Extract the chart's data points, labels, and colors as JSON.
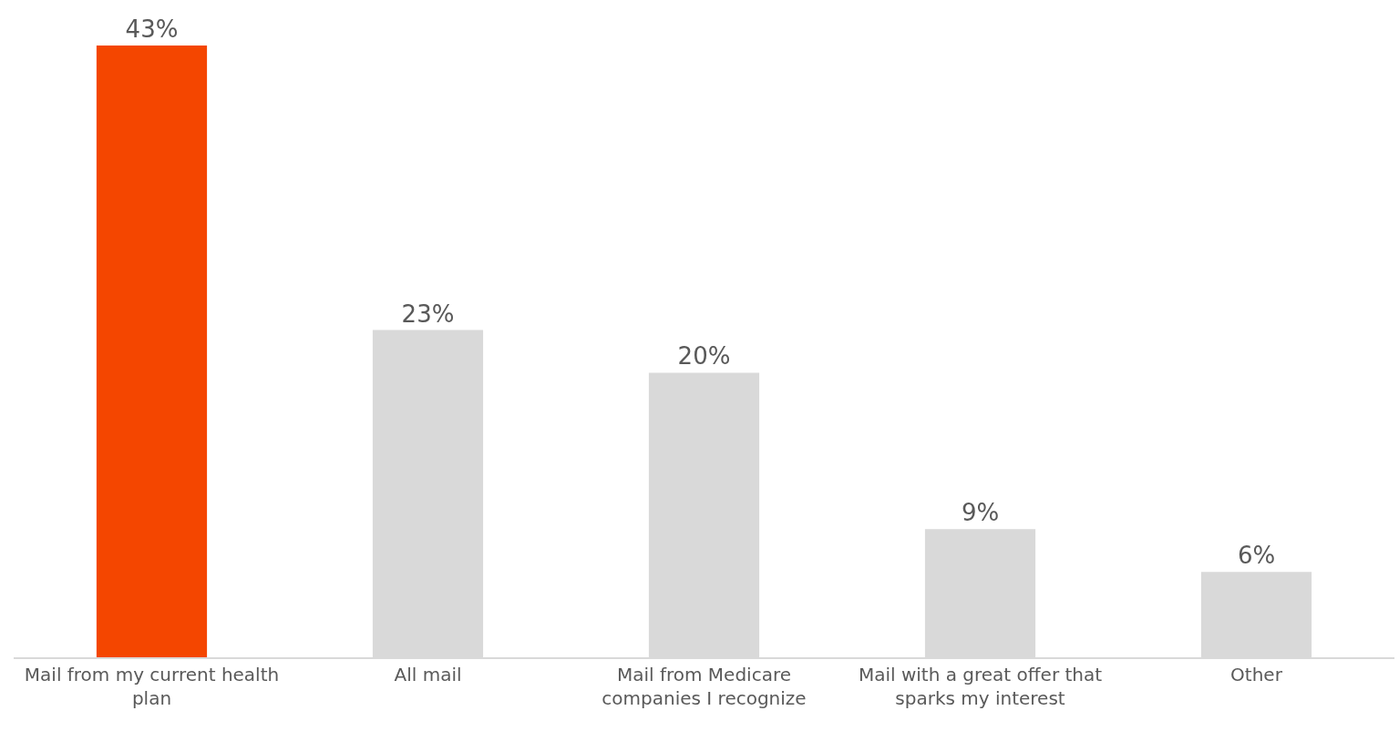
{
  "chart_data": {
    "type": "bar",
    "categories": [
      "Mail from my current health\nplan",
      "All mail",
      "Mail from Medicare\ncompanies I recognize",
      "Mail with a great offer that\nsparks my interest",
      "Other"
    ],
    "values": [
      43,
      23,
      20,
      9,
      6
    ],
    "colors": [
      "#f44600",
      "#d9d9d9",
      "#d9d9d9",
      "#d9d9d9",
      "#d9d9d9"
    ],
    "value_labels": [
      "43%",
      "23%",
      "20%",
      "9%",
      "6%"
    ]
  }
}
